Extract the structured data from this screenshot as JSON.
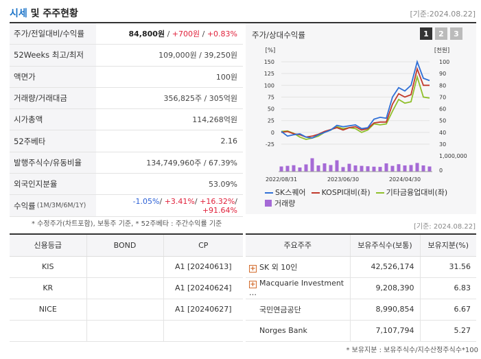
{
  "header": {
    "title_accent": "시세",
    "title_rest": " 및 주주현황",
    "asof": "[기준:2024.08.22]"
  },
  "info": {
    "price_label": "주가/전일대비/수익률",
    "price": "84,800원",
    "price_change": "+700원",
    "price_pct": "+0.83%",
    "week52_label": "52Weeks 최고/최저",
    "week52_value": "109,000원 / 39,250원",
    "par_label": "액면가",
    "par_value": "100원",
    "volume_label": "거래량/거래대금",
    "volume_value": "356,825주 / 305억원",
    "mcap_label": "시가총액",
    "mcap_value": "114,268억원",
    "beta_label": "52주베타",
    "beta_value": "2.16",
    "shares_label": "발행주식수/유동비율",
    "shares_value": "134,749,960주 / 67.39%",
    "foreign_label": "외국인지분율",
    "foreign_value": "53.09%",
    "return_label": "수익률",
    "return_sub": "(1M/3M/6M/1Y)",
    "return_1m": "-1.05%",
    "return_3m": "+3.41%",
    "return_6m": "+16.32%",
    "return_1y": "+91.64%",
    "sep": "/",
    "note": "* 수정주가(차트포함), 보통주 기준, * 52주베타 : 주간수익률 기준"
  },
  "chart": {
    "title": "주가/상대수익률",
    "pages": [
      "1",
      "2",
      "3"
    ],
    "left_unit": "[%]",
    "right_unit": "[천원]",
    "left_ticks": [
      "150",
      "125",
      "100",
      "75",
      "50",
      "25",
      "0",
      "-25"
    ],
    "right_ticks": [
      "100",
      "90",
      "80",
      "70",
      "60",
      "50",
      "40",
      "30"
    ],
    "volume_ticks": [
      "1,000,000",
      "0"
    ],
    "x_ticks": [
      "2022/08/31",
      "2023/06/30",
      "2024/04/30"
    ],
    "legend": {
      "series1": "SK스퀘어",
      "series2": "KOSPI대비(좌)",
      "series3": "기타금융업대비(좌)",
      "volume": "거래량"
    },
    "colors": {
      "sk": "#2f6fd6",
      "kospi": "#c0392b",
      "sector": "#8fbf2a",
      "volume": "#a56ad6"
    }
  },
  "chart_data": {
    "type": "line",
    "title": "주가/상대수익률",
    "x": [
      "2022/08",
      "2022/09",
      "2022/10",
      "2022/11",
      "2022/12",
      "2023/01",
      "2023/02",
      "2023/03",
      "2023/04",
      "2023/05",
      "2023/06",
      "2023/07",
      "2023/08",
      "2023/09",
      "2023/10",
      "2023/11",
      "2023/12",
      "2024/01",
      "2024/02",
      "2024/03",
      "2024/04",
      "2024/05",
      "2024/06",
      "2024/07",
      "2024/08"
    ],
    "series": [
      {
        "name": "SK스퀘어",
        "values": [
          2,
          -8,
          -5,
          -3,
          -10,
          -12,
          -5,
          0,
          5,
          15,
          12,
          14,
          16,
          8,
          10,
          28,
          32,
          30,
          75,
          95,
          88,
          100,
          150,
          115,
          110
        ]
      },
      {
        "name": "KOSPI대비(좌)",
        "values": [
          0,
          2,
          -3,
          -5,
          -10,
          -8,
          -4,
          2,
          6,
          10,
          5,
          10,
          12,
          5,
          8,
          20,
          22,
          22,
          60,
          82,
          75,
          80,
          135,
          100,
          100
        ]
      },
      {
        "name": "기타금융업대비(좌)",
        "values": [
          2,
          3,
          -2,
          -10,
          -15,
          -12,
          -8,
          0,
          5,
          12,
          8,
          10,
          8,
          0,
          5,
          18,
          16,
          18,
          45,
          70,
          62,
          65,
          118,
          75,
          73
        ]
      }
    ],
    "volume": [
      250000,
      280000,
      310000,
      200000,
      350000,
      650000,
      300000,
      400000,
      320000,
      550000,
      220000,
      380000,
      300000,
      280000,
      260000,
      240000,
      230000,
      400000,
      280000,
      360000,
      300000,
      320000,
      420000,
      300000,
      250000
    ],
    "ylabel_left": "[%]",
    "ylabel_right": "[천원]",
    "ylim": [
      -25,
      150
    ],
    "ylim_right": [
      30,
      100
    ],
    "yticks": [
      -25,
      0,
      25,
      50,
      75,
      100,
      125,
      150
    ]
  },
  "credit": {
    "headers": [
      "신용등급",
      "BOND",
      "CP"
    ],
    "rows": [
      [
        "KIS",
        "",
        "A1 [20240613]"
      ],
      [
        "KR",
        "",
        "A1 [20240624]"
      ],
      [
        "NICE",
        "",
        "A1 [20240627]"
      ],
      [
        "",
        "",
        ""
      ]
    ]
  },
  "holders": {
    "asof": "[기준: 2024.08.22]",
    "headers": [
      "주요주주",
      "보유주식수(보통)",
      "보유지분(%)"
    ],
    "rows": [
      {
        "name": "SK 외 10인",
        "shares": "42,526,174",
        "pct": "31.56",
        "expand": "+"
      },
      {
        "name": "Macquarie Investment …",
        "shares": "9,208,390",
        "pct": "6.83",
        "expand": "+"
      },
      {
        "name": "국민연금공단",
        "shares": "8,990,854",
        "pct": "6.67",
        "expand": ""
      },
      {
        "name": "Norges Bank",
        "shares": "7,107,794",
        "pct": "5.27",
        "expand": ""
      }
    ],
    "note": "* 보유지분 : 보유주식수/지수산정주식수*100"
  }
}
